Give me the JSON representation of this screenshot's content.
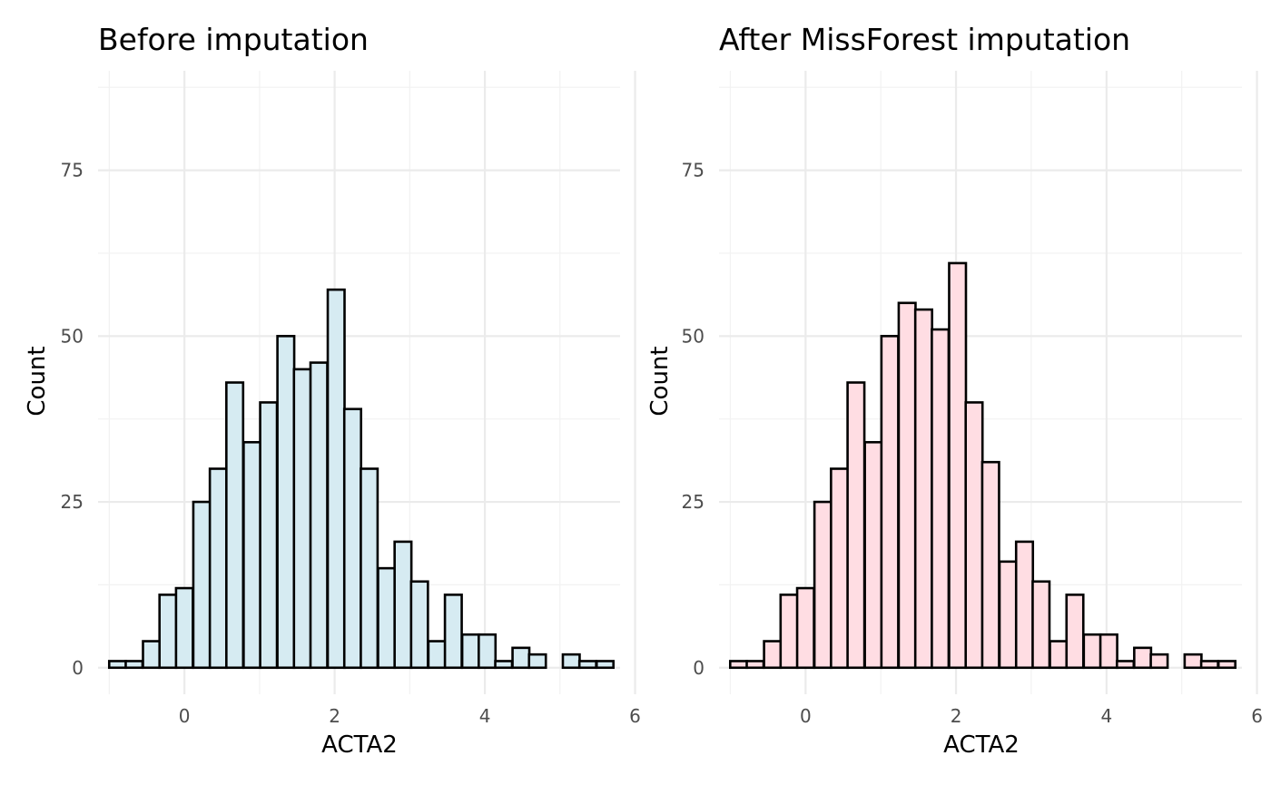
{
  "chart_data": [
    {
      "type": "bar",
      "title": "Before imputation",
      "xlabel": "ACTA2",
      "ylabel": "Count",
      "fill": "#d6ebf2",
      "stroke": "#000000",
      "xlim": [
        -1.15,
        5.8
      ],
      "ylim": [
        -4,
        90
      ],
      "xticks": [
        0,
        2,
        4,
        6
      ],
      "xtick_labels": [
        "0",
        "2",
        "4",
        "6"
      ],
      "yticks": [
        0,
        25,
        50,
        75
      ],
      "ytick_labels": [
        "0",
        "25",
        "50",
        "75"
      ],
      "grid": true,
      "bin_width": 0.2234,
      "bin_centers": [
        -0.89,
        -0.67,
        -0.44,
        -0.22,
        0.0,
        0.23,
        0.45,
        0.67,
        0.9,
        1.12,
        1.35,
        1.57,
        1.79,
        2.02,
        2.24,
        2.46,
        2.69,
        2.91,
        3.13,
        3.36,
        3.58,
        3.81,
        4.03,
        4.25,
        4.48,
        4.7,
        4.92,
        5.15,
        5.37,
        5.6
      ],
      "values": [
        1,
        1,
        4,
        11,
        12,
        25,
        30,
        43,
        34,
        40,
        50,
        45,
        46,
        57,
        39,
        30,
        15,
        19,
        13,
        4,
        11,
        5,
        5,
        1,
        3,
        2,
        0,
        2,
        1,
        1
      ]
    },
    {
      "type": "bar",
      "title": "After MissForest imputation",
      "xlabel": "ACTA2",
      "ylabel": "Count",
      "fill": "#ffdde3",
      "stroke": "#000000",
      "xlim": [
        -1.15,
        5.8
      ],
      "ylim": [
        -4,
        90
      ],
      "xticks": [
        0,
        2,
        4,
        6
      ],
      "xtick_labels": [
        "0",
        "2",
        "4",
        "6"
      ],
      "yticks": [
        0,
        25,
        50,
        75
      ],
      "ytick_labels": [
        "0",
        "25",
        "50",
        "75"
      ],
      "grid": true,
      "bin_width": 0.2234,
      "bin_centers": [
        -0.89,
        -0.67,
        -0.44,
        -0.22,
        0.0,
        0.23,
        0.45,
        0.67,
        0.9,
        1.12,
        1.35,
        1.57,
        1.79,
        2.02,
        2.24,
        2.46,
        2.69,
        2.91,
        3.13,
        3.36,
        3.58,
        3.81,
        4.03,
        4.25,
        4.48,
        4.7,
        4.92,
        5.15,
        5.37,
        5.6
      ],
      "values": [
        1,
        1,
        4,
        11,
        12,
        25,
        30,
        43,
        34,
        50,
        55,
        54,
        51,
        61,
        40,
        31,
        16,
        19,
        13,
        4,
        11,
        5,
        5,
        1,
        3,
        2,
        0,
        2,
        1,
        1
      ]
    }
  ]
}
